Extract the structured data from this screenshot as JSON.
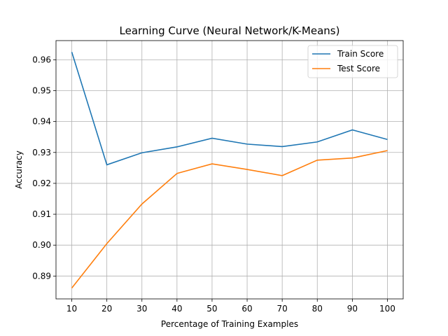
{
  "chart_data": {
    "type": "line",
    "title": "Learning Curve (Neural Network/K-Means)",
    "xlabel": "Percentage of Training Examples",
    "ylabel": "Accuracy",
    "x": [
      10,
      20,
      30,
      40,
      50,
      60,
      70,
      80,
      90,
      100
    ],
    "xticks": [
      "10",
      "20",
      "30",
      "40",
      "50",
      "60",
      "70",
      "80",
      "90",
      "100"
    ],
    "yticks": [
      0.89,
      0.9,
      0.91,
      0.92,
      0.93,
      0.94,
      0.95,
      0.96
    ],
    "ytick_labels": [
      "0.89",
      "0.90",
      "0.91",
      "0.92",
      "0.93",
      "0.94",
      "0.95",
      "0.96"
    ],
    "xlim": [
      5.5,
      104.5
    ],
    "ylim": [
      0.8826,
      0.9662
    ],
    "grid": true,
    "legend_position": "top-right",
    "series": [
      {
        "name": "Train Score",
        "color": "#1f77b4",
        "values": [
          0.9625,
          0.926,
          0.9299,
          0.9318,
          0.9346,
          0.9327,
          0.9319,
          0.9334,
          0.9373,
          0.9342
        ]
      },
      {
        "name": "Test Score",
        "color": "#ff7f0e",
        "values": [
          0.8861,
          0.9005,
          0.9133,
          0.9232,
          0.9263,
          0.9245,
          0.9225,
          0.9275,
          0.9282,
          0.9306
        ]
      }
    ]
  }
}
